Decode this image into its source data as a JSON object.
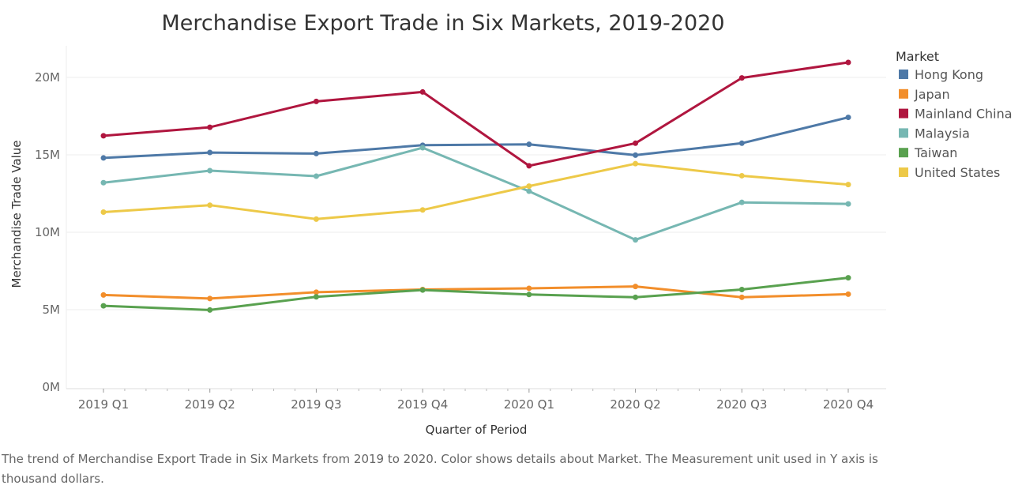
{
  "chart_data": {
    "type": "line",
    "title": "Merchandise Export Trade in Six Markets, 2019-2020",
    "xlabel": "Quarter of Period",
    "ylabel": "Merchandise Trade Value",
    "ylim": [
      0,
      22000000
    ],
    "yticks": [
      0,
      5000000,
      10000000,
      15000000,
      20000000
    ],
    "ytick_labels": [
      "0M",
      "5M",
      "10M",
      "15M",
      "20M"
    ],
    "grid": "horizontal",
    "legend_title": "Market",
    "legend_position": "right",
    "categories": [
      "2019 Q1",
      "2019 Q2",
      "2019 Q3",
      "2019 Q4",
      "2020 Q1",
      "2020 Q2",
      "2020 Q3",
      "2020 Q4"
    ],
    "series": [
      {
        "name": "Hong Kong",
        "color": "#4e79a7",
        "values": [
          14800000,
          15150000,
          15080000,
          15620000,
          15680000,
          14980000,
          15750000,
          17420000
        ]
      },
      {
        "name": "Japan",
        "color": "#f28e2b",
        "values": [
          5950000,
          5720000,
          6130000,
          6300000,
          6380000,
          6500000,
          5800000,
          6000000
        ]
      },
      {
        "name": "Mainland China",
        "color": "#b0163f",
        "values": [
          16230000,
          16780000,
          18450000,
          19060000,
          14290000,
          15750000,
          19970000,
          20970000
        ]
      },
      {
        "name": "Malaysia",
        "color": "#76b7b2",
        "values": [
          13200000,
          13980000,
          13620000,
          15460000,
          12650000,
          9510000,
          11930000,
          11830000
        ]
      },
      {
        "name": "Taiwan",
        "color": "#59a14f",
        "values": [
          5250000,
          4980000,
          5830000,
          6270000,
          5980000,
          5800000,
          6300000,
          7060000
        ]
      },
      {
        "name": "United States",
        "color": "#edc948",
        "values": [
          11300000,
          11750000,
          10850000,
          11440000,
          12980000,
          14430000,
          13650000,
          13080000
        ]
      }
    ]
  },
  "caption": "The trend of Merchandise Export Trade in Six Markets from 2019 to 2020.  Color shows details about Market. The Measurement unit used in Y axis is thousand dollars."
}
